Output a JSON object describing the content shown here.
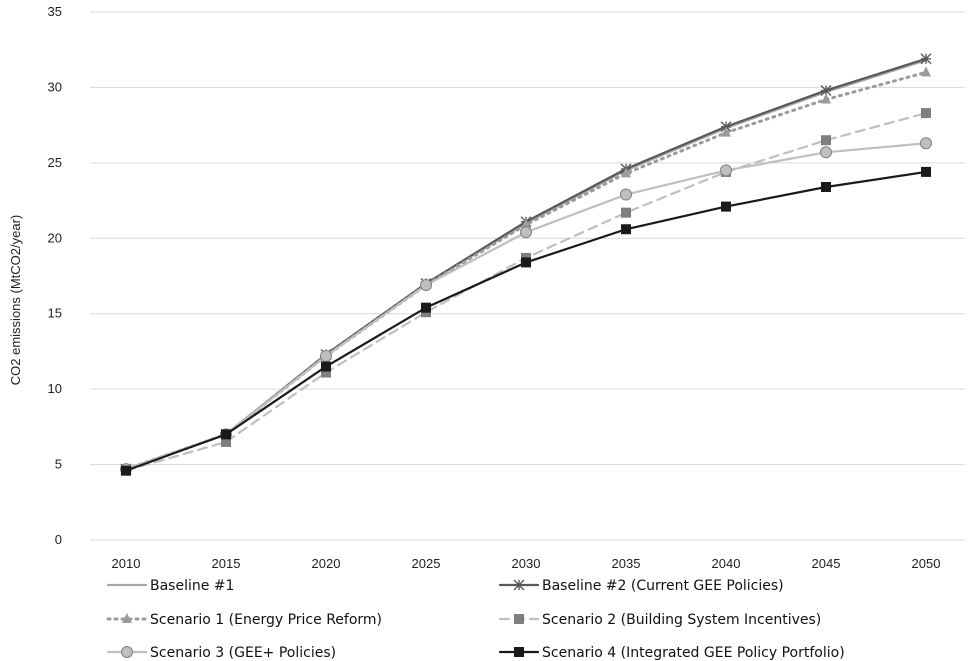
{
  "chart_data": {
    "type": "line",
    "title": "",
    "xlabel": "",
    "ylabel": "CO2 emissions (MtCO2/year)",
    "x": [
      2010,
      2015,
      2020,
      2025,
      2030,
      2035,
      2040,
      2045,
      2050
    ],
    "ylim": [
      0,
      35
    ],
    "yticks": [
      0,
      5,
      10,
      15,
      20,
      25,
      30,
      35
    ],
    "grid": true,
    "legend_position": "bottom",
    "series": [
      {
        "name": "Baseline #1",
        "values": [
          4.7,
          7.0,
          12.3,
          17.0,
          21.0,
          24.5,
          27.3,
          29.7,
          31.8
        ],
        "color": "#a6a6a6",
        "dash": "solid",
        "marker": "none"
      },
      {
        "name": "Baseline #2 (Current GEE Policies)",
        "values": [
          4.7,
          7.0,
          12.3,
          17.0,
          21.1,
          24.6,
          27.4,
          29.8,
          31.9
        ],
        "color": "#595959",
        "dash": "solid",
        "marker": "star"
      },
      {
        "name": "Scenario 1 (Energy Price Reform)",
        "values": [
          4.7,
          7.0,
          12.2,
          16.9,
          20.9,
          24.3,
          27.0,
          29.2,
          31.0
        ],
        "color": "#9b9b9b",
        "dash": "dot",
        "marker": "triangle"
      },
      {
        "name": "Scenario 2 (Building System Incentives)",
        "values": [
          4.6,
          6.5,
          11.1,
          15.1,
          18.7,
          21.7,
          24.4,
          26.5,
          28.3
        ],
        "color": "#7f7f7f",
        "dash": "dash",
        "line_color": "#bfbfbf",
        "marker": "square"
      },
      {
        "name": "Scenario 3 (GEE+ Policies)",
        "values": [
          4.7,
          7.0,
          12.2,
          16.9,
          20.4,
          22.9,
          24.5,
          25.7,
          26.3
        ],
        "color": "#bfbfbf",
        "dash": "solid",
        "marker": "circle"
      },
      {
        "name": "Scenario 4 (Integrated GEE Policy Portfolio)",
        "values": [
          4.6,
          7.0,
          11.5,
          15.4,
          18.4,
          20.6,
          22.1,
          23.4,
          24.4
        ],
        "color": "#1a1a1a",
        "dash": "solid",
        "marker": "square"
      }
    ]
  }
}
